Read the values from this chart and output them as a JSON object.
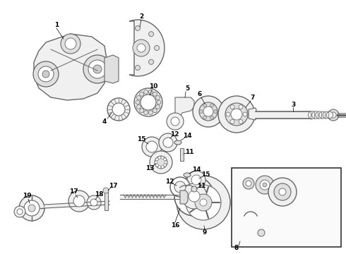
{
  "background_color": "#ffffff",
  "lc": "#666666",
  "dc": "#333333",
  "fc_light": "#f0f0f0",
  "fc_mid": "#e0e0e0",
  "fc_dark": "#cccccc",
  "fig_width": 4.9,
  "fig_height": 3.6,
  "dpi": 100
}
